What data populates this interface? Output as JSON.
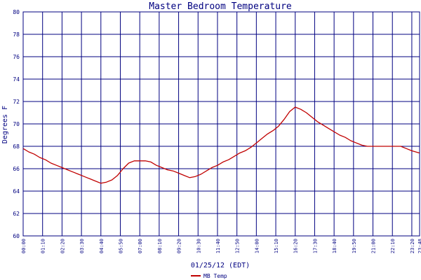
{
  "chart_data": {
    "type": "line",
    "title": "Master Bedroom Temperature",
    "xlabel": "01/25/12 (EDT)",
    "ylabel": "Degrees F",
    "ylim": [
      60,
      80
    ],
    "yticks": [
      60,
      62,
      64,
      66,
      68,
      70,
      72,
      74,
      76,
      78,
      80
    ],
    "xlim": [
      "00:00",
      "23:48"
    ],
    "xticks": [
      "00:00",
      "01:10",
      "02:20",
      "03:30",
      "04:40",
      "05:50",
      "07:00",
      "08:10",
      "09:20",
      "10:30",
      "11:40",
      "12:50",
      "14:00",
      "15:10",
      "16:20",
      "17:30",
      "18:40",
      "19:50",
      "21:00",
      "22:10",
      "23:20",
      "23:48"
    ],
    "grid": true,
    "legend_position": "bottom-left",
    "colors": {
      "series": "#c00000",
      "grid": "#000080",
      "text": "#000080"
    },
    "series": [
      {
        "name": "MB Temp",
        "x": [
          "00:00",
          "00:20",
          "00:40",
          "01:00",
          "01:20",
          "01:40",
          "02:00",
          "02:20",
          "02:40",
          "03:00",
          "03:20",
          "03:40",
          "04:00",
          "04:20",
          "04:40",
          "05:00",
          "05:20",
          "05:40",
          "06:00",
          "06:20",
          "06:40",
          "07:00",
          "07:20",
          "07:40",
          "08:00",
          "08:20",
          "08:40",
          "09:00",
          "09:20",
          "09:40",
          "10:00",
          "10:20",
          "10:40",
          "11:00",
          "11:20",
          "11:40",
          "12:00",
          "12:20",
          "12:40",
          "13:00",
          "13:20",
          "13:40",
          "14:00",
          "14:20",
          "14:40",
          "15:00",
          "15:20",
          "15:40",
          "16:00",
          "16:20",
          "16:40",
          "17:00",
          "17:20",
          "17:40",
          "18:00",
          "18:20",
          "18:40",
          "19:00",
          "19:20",
          "19:40",
          "20:00",
          "20:20",
          "20:40",
          "21:00",
          "21:20",
          "21:40",
          "22:00",
          "22:20",
          "22:40",
          "23:00",
          "23:20",
          "23:48"
        ],
        "values": [
          67.8,
          67.5,
          67.3,
          67.0,
          66.8,
          66.5,
          66.3,
          66.1,
          65.9,
          65.7,
          65.5,
          65.3,
          65.1,
          64.9,
          64.7,
          64.8,
          65.0,
          65.4,
          66.0,
          66.5,
          66.7,
          66.7,
          66.7,
          66.6,
          66.3,
          66.1,
          65.9,
          65.8,
          65.6,
          65.4,
          65.2,
          65.3,
          65.5,
          65.8,
          66.1,
          66.3,
          66.6,
          66.8,
          67.1,
          67.4,
          67.6,
          67.9,
          68.3,
          68.7,
          69.1,
          69.4,
          69.8,
          70.4,
          71.1,
          71.5,
          71.3,
          71.0,
          70.6,
          70.2,
          69.9,
          69.6,
          69.3,
          69.0,
          68.8,
          68.5,
          68.3,
          68.1,
          68.0,
          68.0,
          68.0,
          68.0,
          68.0,
          68.0,
          68.0,
          67.8,
          67.6,
          67.4
        ]
      }
    ]
  }
}
